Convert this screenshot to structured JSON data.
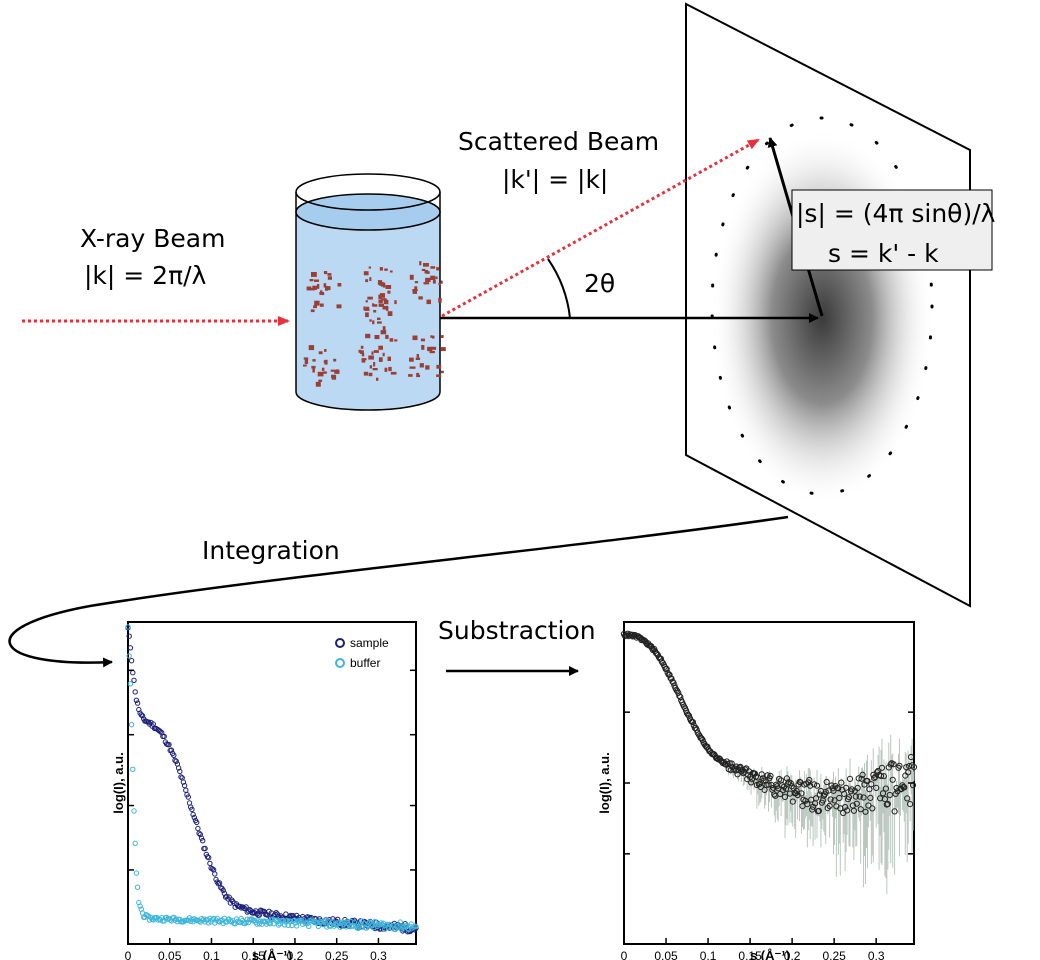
{
  "labels": {
    "xray_beam": "X-ray Beam",
    "xray_eq": "|k| = 2π/λ",
    "scattered_beam": "Scattered Beam",
    "scattered_eq": "|k'| = |k|",
    "angle": "2θ",
    "s_magnitude": "|s| = (4π sinθ)/λ",
    "s_vector": "s = k' - k",
    "integration": "Integration",
    "subtraction": "Substraction"
  },
  "colors": {
    "incident_beam": "#e8303a",
    "scattered_beam": "#e8303a",
    "liquid": "#bcd9f3",
    "protein": "#9a3f36",
    "sample_series": "#1c1f7a",
    "buffer_series": "#3eb5d9",
    "subtracted_series": "#222222",
    "error_bars": "#b9c6bd"
  },
  "chart_data": [
    {
      "type": "scatter",
      "xlabel": "s (Å⁻¹)",
      "ylabel": "log(I), a.u.",
      "xlim": [
        0,
        0.345
      ],
      "ylim": [
        0,
        1
      ],
      "xticks": [
        "0",
        "0,05",
        "0,1",
        "0,15",
        "0,2",
        "0,25",
        "0,3"
      ],
      "x_tick_values": [
        0,
        0.05,
        0.1,
        0.15,
        0.2,
        0.25,
        0.3
      ],
      "y_tick_values": [
        0.23,
        0.43,
        0.65,
        0.85
      ],
      "legend": "top-right",
      "series": [
        {
          "name": "sample",
          "color": "#1c1f7a",
          "points": [
            [
              0.0,
              0.98
            ],
            [
              0.003,
              0.92
            ],
            [
              0.006,
              0.84
            ],
            [
              0.01,
              0.76
            ],
            [
              0.015,
              0.71
            ],
            [
              0.02,
              0.695
            ],
            [
              0.03,
              0.68
            ],
            [
              0.04,
              0.655
            ],
            [
              0.05,
              0.61
            ],
            [
              0.06,
              0.55
            ],
            [
              0.07,
              0.47
            ],
            [
              0.08,
              0.39
            ],
            [
              0.09,
              0.31
            ],
            [
              0.1,
              0.24
            ],
            [
              0.11,
              0.18
            ],
            [
              0.12,
              0.14
            ],
            [
              0.13,
              0.118
            ],
            [
              0.15,
              0.1
            ],
            [
              0.18,
              0.088
            ],
            [
              0.21,
              0.078
            ],
            [
              0.24,
              0.07
            ],
            [
              0.27,
              0.063
            ],
            [
              0.3,
              0.057
            ],
            [
              0.32,
              0.053
            ],
            [
              0.34,
              0.05
            ]
          ]
        },
        {
          "name": "buffer",
          "color": "#3eb5d9",
          "points": [
            [
              0.0,
              0.98
            ],
            [
              0.003,
              0.8
            ],
            [
              0.006,
              0.52
            ],
            [
              0.008,
              0.35
            ],
            [
              0.01,
              0.22
            ],
            [
              0.013,
              0.13
            ],
            [
              0.018,
              0.09
            ],
            [
              0.025,
              0.08
            ],
            [
              0.05,
              0.077
            ],
            [
              0.1,
              0.073
            ],
            [
              0.15,
              0.07
            ],
            [
              0.2,
              0.066
            ],
            [
              0.25,
              0.062
            ],
            [
              0.3,
              0.058
            ],
            [
              0.345,
              0.054
            ]
          ]
        }
      ]
    },
    {
      "type": "scatter",
      "xlabel": "s (Å⁻¹)",
      "ylabel": "log(I), a.u.",
      "xlim": [
        0,
        0.345
      ],
      "ylim": [
        0,
        1
      ],
      "xticks": [
        "0",
        "0,05",
        "0,1",
        "0,15",
        "0,2",
        "0,25",
        "0,3"
      ],
      "x_tick_values": [
        0,
        0.05,
        0.1,
        0.15,
        0.2,
        0.25,
        0.3
      ],
      "y_tick_values": [
        0.28,
        0.5,
        0.72
      ],
      "series": [
        {
          "color": "#222222",
          "points": [
            [
              0.005,
              0.96
            ],
            [
              0.015,
              0.955
            ],
            [
              0.025,
              0.94
            ],
            [
              0.035,
              0.915
            ],
            [
              0.045,
              0.88
            ],
            [
              0.055,
              0.83
            ],
            [
              0.065,
              0.775
            ],
            [
              0.075,
              0.72
            ],
            [
              0.085,
              0.67
            ],
            [
              0.095,
              0.625
            ],
            [
              0.105,
              0.59
            ],
            [
              0.12,
              0.56
            ],
            [
              0.14,
              0.535
            ],
            [
              0.16,
              0.51
            ],
            [
              0.18,
              0.49
            ],
            [
              0.2,
              0.475
            ],
            [
              0.22,
              0.465
            ],
            [
              0.24,
              0.455
            ],
            [
              0.26,
              0.455
            ],
            [
              0.28,
              0.46
            ],
            [
              0.3,
              0.47
            ],
            [
              0.32,
              0.485
            ],
            [
              0.345,
              0.5
            ]
          ]
        }
      ]
    }
  ]
}
